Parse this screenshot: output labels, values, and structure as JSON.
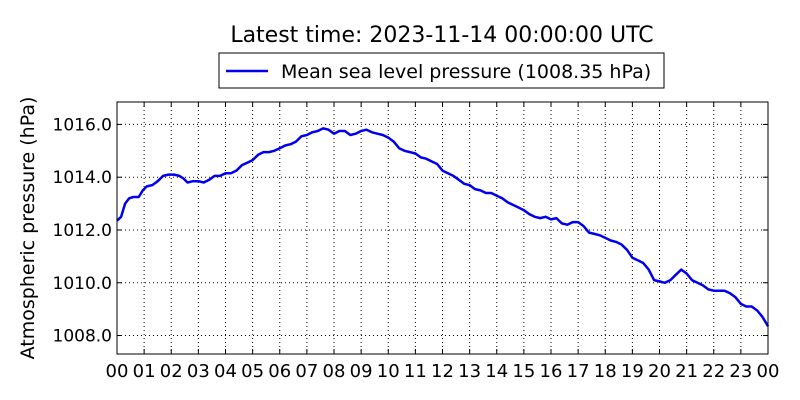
{
  "chart_data": {
    "type": "line",
    "title": "Latest time: 2023-11-14 00:00:00 UTC",
    "xlabel": "",
    "ylabel": "Atmospheric pressure (hPa)",
    "xlim": [
      0,
      24
    ],
    "ylim": [
      1007.3,
      1016.85
    ],
    "x_ticks": [
      0,
      1,
      2,
      3,
      4,
      5,
      6,
      7,
      8,
      9,
      10,
      11,
      12,
      13,
      14,
      15,
      16,
      17,
      18,
      19,
      20,
      21,
      22,
      23,
      24
    ],
    "x_tick_labels": [
      "00",
      "01",
      "02",
      "03",
      "04",
      "05",
      "06",
      "07",
      "08",
      "09",
      "10",
      "11",
      "12",
      "13",
      "14",
      "15",
      "16",
      "17",
      "18",
      "19",
      "20",
      "21",
      "22",
      "23",
      "00"
    ],
    "y_ticks": [
      1008,
      1010,
      1012,
      1014,
      1016
    ],
    "y_tick_labels": [
      "1008.0",
      "1010.0",
      "1012.0",
      "1014.0",
      "1016.0"
    ],
    "grid": true,
    "legend_position": "top-center",
    "series": [
      {
        "name": "Mean sea level pressure (1008.35 hPa)",
        "color": "#0000ee",
        "points": [
          [
            0.0,
            1012.35
          ],
          [
            0.15,
            1012.5
          ],
          [
            0.3,
            1013.0
          ],
          [
            0.45,
            1013.2
          ],
          [
            0.6,
            1013.25
          ],
          [
            0.8,
            1013.25
          ],
          [
            0.95,
            1013.5
          ],
          [
            1.1,
            1013.65
          ],
          [
            1.3,
            1013.7
          ],
          [
            1.5,
            1013.85
          ],
          [
            1.7,
            1014.05
          ],
          [
            1.9,
            1014.1
          ],
          [
            2.1,
            1014.1
          ],
          [
            2.3,
            1014.05
          ],
          [
            2.45,
            1013.95
          ],
          [
            2.6,
            1013.8
          ],
          [
            2.8,
            1013.85
          ],
          [
            3.0,
            1013.85
          ],
          [
            3.2,
            1013.8
          ],
          [
            3.4,
            1013.9
          ],
          [
            3.6,
            1014.05
          ],
          [
            3.8,
            1014.05
          ],
          [
            4.0,
            1014.15
          ],
          [
            4.2,
            1014.15
          ],
          [
            4.4,
            1014.25
          ],
          [
            4.6,
            1014.45
          ],
          [
            4.8,
            1014.55
          ],
          [
            5.0,
            1014.65
          ],
          [
            5.2,
            1014.85
          ],
          [
            5.4,
            1014.95
          ],
          [
            5.6,
            1014.95
          ],
          [
            5.8,
            1015.0
          ],
          [
            6.0,
            1015.1
          ],
          [
            6.2,
            1015.2
          ],
          [
            6.4,
            1015.25
          ],
          [
            6.6,
            1015.35
          ],
          [
            6.8,
            1015.55
          ],
          [
            7.0,
            1015.6
          ],
          [
            7.2,
            1015.7
          ],
          [
            7.4,
            1015.75
          ],
          [
            7.6,
            1015.85
          ],
          [
            7.8,
            1015.8
          ],
          [
            8.0,
            1015.65
          ],
          [
            8.2,
            1015.75
          ],
          [
            8.4,
            1015.75
          ],
          [
            8.6,
            1015.6
          ],
          [
            8.8,
            1015.65
          ],
          [
            9.0,
            1015.75
          ],
          [
            9.2,
            1015.8
          ],
          [
            9.4,
            1015.7
          ],
          [
            9.6,
            1015.65
          ],
          [
            9.8,
            1015.6
          ],
          [
            10.0,
            1015.5
          ],
          [
            10.2,
            1015.35
          ],
          [
            10.4,
            1015.1
          ],
          [
            10.6,
            1015.0
          ],
          [
            10.8,
            1014.95
          ],
          [
            11.0,
            1014.9
          ],
          [
            11.2,
            1014.75
          ],
          [
            11.4,
            1014.7
          ],
          [
            11.6,
            1014.6
          ],
          [
            11.8,
            1014.5
          ],
          [
            12.0,
            1014.25
          ],
          [
            12.2,
            1014.15
          ],
          [
            12.4,
            1014.05
          ],
          [
            12.6,
            1013.9
          ],
          [
            12.8,
            1013.75
          ],
          [
            13.0,
            1013.7
          ],
          [
            13.2,
            1013.55
          ],
          [
            13.4,
            1013.5
          ],
          [
            13.6,
            1013.4
          ],
          [
            13.8,
            1013.4
          ],
          [
            14.0,
            1013.3
          ],
          [
            14.2,
            1013.2
          ],
          [
            14.4,
            1013.05
          ],
          [
            14.6,
            1012.95
          ],
          [
            14.8,
            1012.85
          ],
          [
            15.0,
            1012.75
          ],
          [
            15.2,
            1012.6
          ],
          [
            15.4,
            1012.5
          ],
          [
            15.6,
            1012.45
          ],
          [
            15.8,
            1012.5
          ],
          [
            16.0,
            1012.4
          ],
          [
            16.2,
            1012.45
          ],
          [
            16.4,
            1012.25
          ],
          [
            16.6,
            1012.2
          ],
          [
            16.8,
            1012.3
          ],
          [
            17.0,
            1012.3
          ],
          [
            17.2,
            1012.15
          ],
          [
            17.4,
            1011.9
          ],
          [
            17.6,
            1011.85
          ],
          [
            17.8,
            1011.8
          ],
          [
            18.0,
            1011.7
          ],
          [
            18.2,
            1011.6
          ],
          [
            18.4,
            1011.55
          ],
          [
            18.6,
            1011.45
          ],
          [
            18.8,
            1011.25
          ],
          [
            19.0,
            1010.95
          ],
          [
            19.2,
            1010.85
          ],
          [
            19.4,
            1010.75
          ],
          [
            19.6,
            1010.5
          ],
          [
            19.8,
            1010.1
          ],
          [
            20.0,
            1010.05
          ],
          [
            20.2,
            1010.0
          ],
          [
            20.4,
            1010.1
          ],
          [
            20.6,
            1010.3
          ],
          [
            20.8,
            1010.5
          ],
          [
            21.0,
            1010.35
          ],
          [
            21.2,
            1010.1
          ],
          [
            21.4,
            1010.0
          ],
          [
            21.6,
            1009.9
          ],
          [
            21.8,
            1009.75
          ],
          [
            22.0,
            1009.7
          ],
          [
            22.2,
            1009.7
          ],
          [
            22.4,
            1009.7
          ],
          [
            22.6,
            1009.6
          ],
          [
            22.8,
            1009.45
          ],
          [
            23.0,
            1009.2
          ],
          [
            23.2,
            1009.1
          ],
          [
            23.4,
            1009.1
          ],
          [
            23.6,
            1008.95
          ],
          [
            23.8,
            1008.7
          ],
          [
            24.0,
            1008.35
          ]
        ]
      }
    ]
  }
}
